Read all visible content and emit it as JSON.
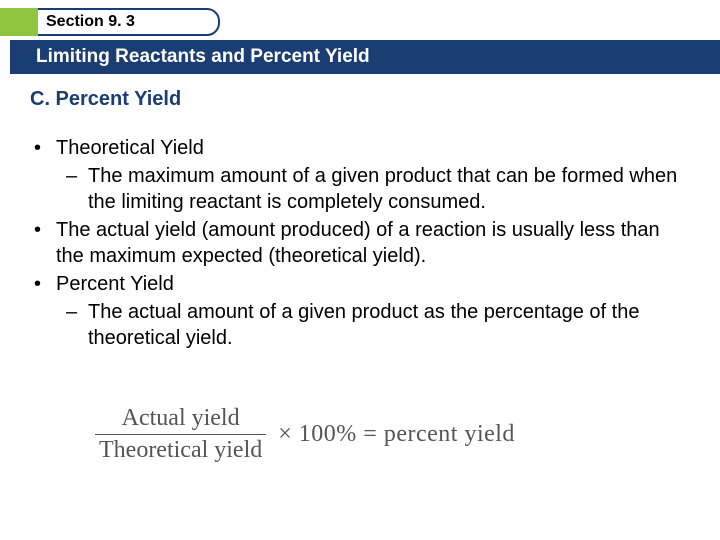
{
  "colors": {
    "accent_green": "#8ec63f",
    "title_bar_bg": "#1a3e74",
    "subheading": "#1a3e74"
  },
  "section_tab": "Section 9. 3",
  "title": "Limiting Reactants and Percent Yield",
  "subheading": "C. Percent Yield",
  "bullets": {
    "b1": "Theoretical Yield",
    "b1a": "The maximum amount of a given product that can be formed when the limiting reactant is completely consumed.",
    "b2": "The actual yield (amount produced) of a reaction is usually less than the maximum expected (theoretical yield).",
    "b3": "Percent Yield",
    "b3a": "The actual amount of a given product as the percentage of the theoretical yield."
  },
  "formula": {
    "numerator": "Actual yield",
    "denominator": "Theoretical yield",
    "rest": "×  100%  =  percent yield"
  }
}
